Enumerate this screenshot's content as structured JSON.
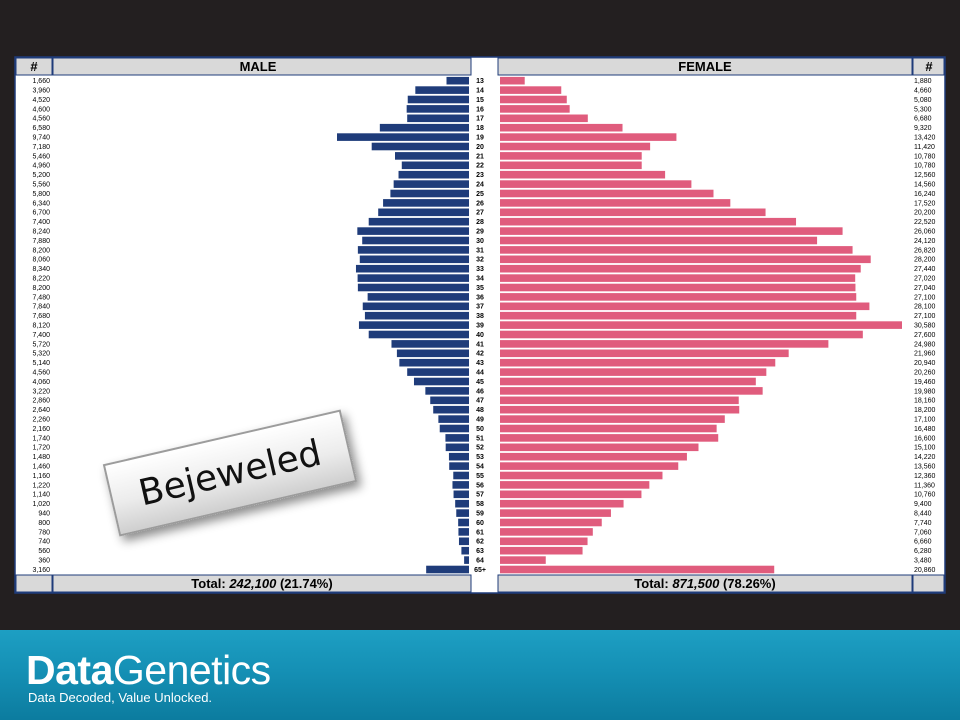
{
  "chart_data": {
    "type": "bar",
    "subtype": "population-pyramid",
    "series": [
      {
        "name": "MALE",
        "color": "#1f3c7a",
        "values": [
          1660,
          3960,
          4520,
          4600,
          4560,
          6580,
          9740,
          7180,
          5460,
          4960,
          5200,
          5560,
          5800,
          6340,
          6700,
          7400,
          8240,
          7880,
          8200,
          8060,
          8340,
          8220,
          8200,
          7480,
          7840,
          7680,
          8120,
          7400,
          5720,
          5320,
          5140,
          4560,
          4060,
          3220,
          2860,
          2640,
          2260,
          2160,
          1740,
          1720,
          1480,
          1460,
          1160,
          1220,
          1140,
          1020,
          940,
          800,
          780,
          740,
          560,
          360,
          3160
        ]
      },
      {
        "name": "FEMALE",
        "color": "#e05c7d",
        "values": [
          1880,
          4660,
          5080,
          5300,
          6680,
          9320,
          13420,
          11420,
          10780,
          10780,
          12560,
          14560,
          16240,
          17520,
          20200,
          22520,
          26060,
          24120,
          26820,
          28200,
          27440,
          27020,
          27040,
          27100,
          28100,
          27100,
          30580,
          27600,
          24980,
          21960,
          20940,
          20260,
          19460,
          19980,
          18160,
          18200,
          17100,
          16480,
          16600,
          15100,
          14220,
          13560,
          12360,
          11360,
          10760,
          9400,
          8440,
          7740,
          7060,
          6660,
          6280,
          3480,
          20860
        ]
      }
    ],
    "categories": [
      "13",
      "14",
      "15",
      "16",
      "17",
      "18",
      "19",
      "20",
      "21",
      "22",
      "23",
      "24",
      "25",
      "26",
      "27",
      "28",
      "29",
      "30",
      "31",
      "32",
      "33",
      "34",
      "35",
      "36",
      "37",
      "38",
      "39",
      "40",
      "41",
      "42",
      "43",
      "44",
      "45",
      "46",
      "47",
      "48",
      "49",
      "50",
      "51",
      "52",
      "53",
      "54",
      "55",
      "56",
      "57",
      "58",
      "59",
      "60",
      "61",
      "62",
      "63",
      "64",
      "65+"
    ],
    "male_count_labels": [
      "1,660",
      "3,960",
      "4,520",
      "4,600",
      "4,560",
      "6,580",
      "9,740",
      "7,180",
      "5,460",
      "4,960",
      "5,200",
      "5,560",
      "5,800",
      "6,340",
      "6,700",
      "7,400",
      "8,240",
      "7,880",
      "8,200",
      "8,060",
      "8,340",
      "8,220",
      "8,200",
      "7,480",
      "7,840",
      "7,680",
      "8,120",
      "7,400",
      "5,720",
      "5,320",
      "5,140",
      "4,560",
      "4,060",
      "3,220",
      "2,860",
      "2,640",
      "2,260",
      "2,160",
      "1,740",
      "1,720",
      "1,480",
      "1,460",
      "1,160",
      "1,220",
      "1,140",
      "1,020",
      "940",
      "800",
      "780",
      "740",
      "560",
      "360",
      "3,160"
    ],
    "female_count_labels": [
      "1,880",
      "4,660",
      "5,080",
      "5,300",
      "6,680",
      "9,320",
      "13,420",
      "11,420",
      "10,780",
      "10,780",
      "12,560",
      "14,560",
      "16,240",
      "17,520",
      "20,200",
      "22,520",
      "26,060",
      "24,120",
      "26,820",
      "28,200",
      "27,440",
      "27,020",
      "27,040",
      "27,100",
      "28,100",
      "27,100",
      "30,580",
      "27,600",
      "24,980",
      "21,960",
      "20,940",
      "20,260",
      "19,460",
      "19,980",
      "18,160",
      "18,200",
      "17,100",
      "16,480",
      "16,600",
      "15,100",
      "14,220",
      "13,560",
      "12,360",
      "11,360",
      "10,760",
      "9,400",
      "8,440",
      "7,740",
      "7,060",
      "6,660",
      "6,280",
      "3,480",
      "20,860"
    ],
    "headers": {
      "left_count": "#",
      "male": "MALE",
      "female": "FEMALE",
      "right_count": "#"
    },
    "totals": {
      "male_prefix": "Total: ",
      "male_value": "242,100",
      "male_pct": " (21.74%)",
      "female_prefix": "Total: ",
      "female_value": "871,500",
      "female_pct": " (78.26%)"
    }
  },
  "badge": {
    "text": "Bejeweled"
  },
  "footer": {
    "brand_bold": "Data",
    "brand_light": "Genetics",
    "tagline": "Data Decoded, Value Unlocked."
  }
}
